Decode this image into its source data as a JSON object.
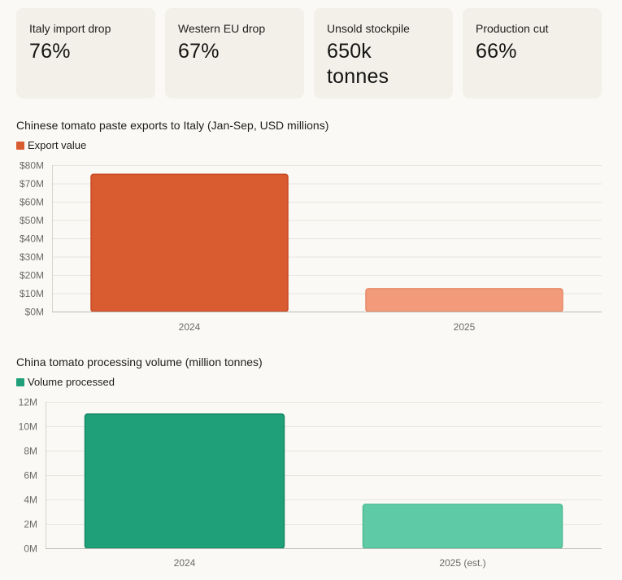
{
  "stats": [
    {
      "label": "Italy import drop",
      "value": "76%"
    },
    {
      "label": "Western EU drop",
      "value": "67%"
    },
    {
      "label": "Unsold stockpile",
      "value": "650k tonnes"
    },
    {
      "label": "Production cut",
      "value": "66%"
    }
  ],
  "chart_data": [
    {
      "type": "bar",
      "title": "Chinese tomato paste exports to Italy (Jan-Sep, USD millions)",
      "categories": [
        "2024",
        "2025"
      ],
      "series": [
        {
          "name": "Export value",
          "values": [
            75,
            12.5
          ]
        }
      ],
      "ylim": [
        0,
        80
      ],
      "yticks": [
        0,
        10,
        20,
        30,
        40,
        50,
        60,
        70,
        80
      ],
      "ytick_labels": [
        "$0M",
        "$10M",
        "$20M",
        "$30M",
        "$40M",
        "$50M",
        "$60M",
        "$70M",
        "$80M"
      ],
      "colors": [
        "#d95b30",
        "#f29a7a"
      ],
      "border_colors": [
        "#c84a22",
        "#e88a68"
      ],
      "legend_color": "#d95b30",
      "grid": true,
      "legend": "top-left"
    },
    {
      "type": "bar",
      "title": "China tomato processing volume (million tonnes)",
      "categories": [
        "2024",
        "2025 (est.)"
      ],
      "series": [
        {
          "name": "Volume processed",
          "values": [
            11,
            3.6
          ]
        }
      ],
      "ylim": [
        0,
        12
      ],
      "yticks": [
        0,
        2,
        4,
        6,
        8,
        10,
        12
      ],
      "ytick_labels": [
        "0M",
        "2M",
        "4M",
        "6M",
        "8M",
        "10M",
        "12M"
      ],
      "colors": [
        "#1fa078",
        "#5ecaa6"
      ],
      "border_colors": [
        "#178a66",
        "#4cbb96"
      ],
      "legend_color": "#1fa078",
      "grid": true,
      "legend": "top-left"
    }
  ]
}
